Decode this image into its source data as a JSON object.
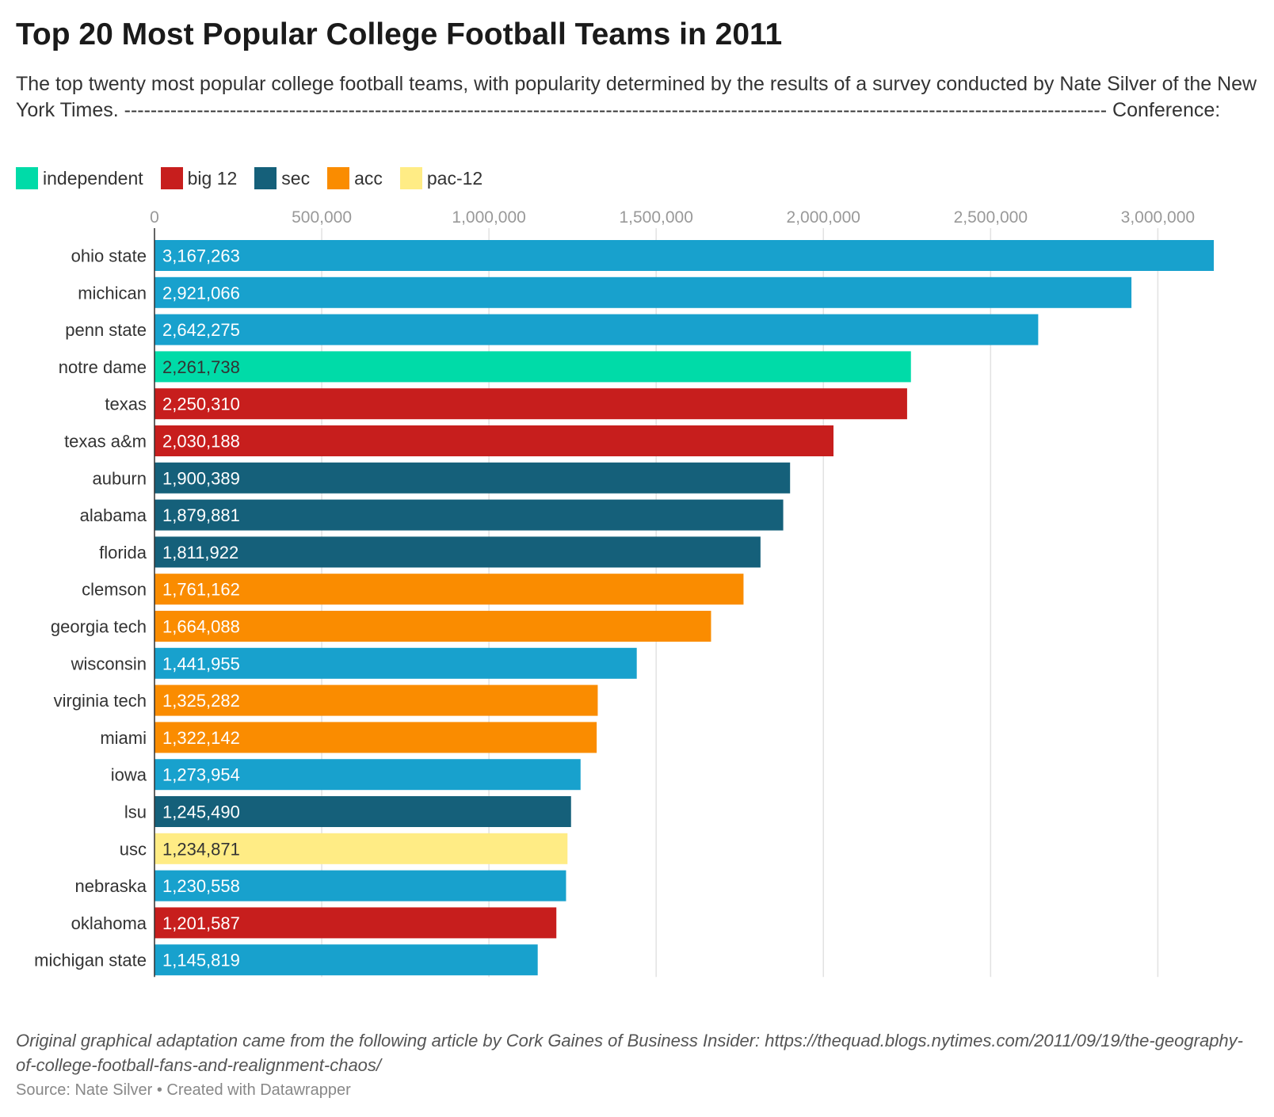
{
  "title": "Top 20 Most Popular College Football Teams in 2011",
  "subtitle": "The top twenty most popular college football teams, with popularity determined by the results of a survey conducted by Nate Silver of the New York Times. ----------------------------------------------------------------------------------------------------------------------------------------------------- Conference:",
  "legend": [
    {
      "label": "independent",
      "color": "#00dba8"
    },
    {
      "label": "big 12",
      "color": "#c71e1d"
    },
    {
      "label": "sec",
      "color": "#15607a"
    },
    {
      "label": "acc",
      "color": "#fa8c00"
    },
    {
      "label": "pac-12",
      "color": "#ffec85"
    }
  ],
  "notes": "Original graphical adaptation came from the following article by Cork Gaines of Business Insider: https://thequad.blogs.nytimes.com/2011/09/19/the-geography-of-college-football-fans-and-realignment-chaos/",
  "byline": "Source: Nate Silver • Created with Datawrapper",
  "chart_data": {
    "type": "bar",
    "orientation": "horizontal",
    "title": "Top 20 Most Popular College Football Teams in 2011",
    "xlim": [
      0,
      3167263
    ],
    "grid": true,
    "x_ticks": [
      0,
      500000,
      1000000,
      1500000,
      2000000,
      2500000,
      3000000
    ],
    "x_tick_labels": [
      "0",
      "500,000",
      "1,000,000",
      "1,500,000",
      "2,000,000",
      "2,500,000",
      "3,000,000"
    ],
    "categories": [
      "ohio state",
      "michican",
      "penn state",
      "notre dame",
      "texas",
      "texas a&m",
      "auburn",
      "alabama",
      "florida",
      "clemson",
      "georgia tech",
      "wisconsin",
      "virginia tech",
      "miami",
      "iowa",
      "lsu",
      "usc",
      "nebraska",
      "oklahoma",
      "michigan state"
    ],
    "values": [
      3167263,
      2921066,
      2642275,
      2261738,
      2250310,
      2030188,
      1900389,
      1879881,
      1811922,
      1761162,
      1664088,
      1441955,
      1325282,
      1322142,
      1273954,
      1245490,
      1234871,
      1230558,
      1201587,
      1145819
    ],
    "value_labels": [
      "3,167,263",
      "2,921,066",
      "2,642,275",
      "2,261,738",
      "2,250,310",
      "2,030,188",
      "1,900,389",
      "1,879,881",
      "1,811,922",
      "1,761,162",
      "1,664,088",
      "1,441,955",
      "1,325,282",
      "1,322,142",
      "1,273,954",
      "1,245,490",
      "1,234,871",
      "1,230,558",
      "1,201,587",
      "1,145,819"
    ],
    "bar_colors": [
      "#18a1cd",
      "#18a1cd",
      "#18a1cd",
      "#00dba8",
      "#c71e1d",
      "#c71e1d",
      "#15607a",
      "#15607a",
      "#15607a",
      "#fa8c00",
      "#fa8c00",
      "#18a1cd",
      "#fa8c00",
      "#fa8c00",
      "#18a1cd",
      "#15607a",
      "#ffec85",
      "#18a1cd",
      "#c71e1d",
      "#18a1cd"
    ],
    "label_colors": [
      "#ffffff",
      "#ffffff",
      "#ffffff",
      "#333333",
      "#ffffff",
      "#ffffff",
      "#ffffff",
      "#ffffff",
      "#ffffff",
      "#ffffff",
      "#ffffff",
      "#ffffff",
      "#ffffff",
      "#ffffff",
      "#ffffff",
      "#ffffff",
      "#333333",
      "#ffffff",
      "#ffffff",
      "#ffffff"
    ]
  }
}
